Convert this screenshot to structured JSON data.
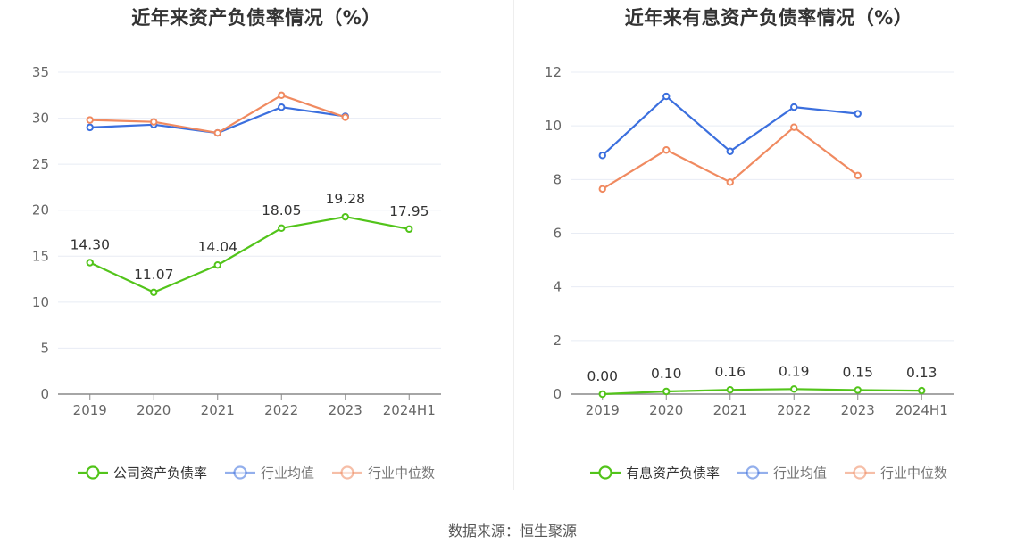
{
  "footer": {
    "source": "数据来源：恒生聚源"
  },
  "colors": {
    "company": "#52c41a",
    "industry_avg": "#3b6fde",
    "industry_median": "#f08a60",
    "grid": "#e8ecf4",
    "axis": "#888888",
    "tick_text": "#666666"
  },
  "chart_data": [
    {
      "type": "line",
      "title": "近年来资产负债率情况（%）",
      "categories": [
        "2019",
        "2020",
        "2021",
        "2022",
        "2023",
        "2024H1"
      ],
      "ylim": [
        0,
        35
      ],
      "yticks": [
        0,
        5,
        10,
        15,
        20,
        25,
        30,
        35
      ],
      "grid": true,
      "legend_position": "bottom",
      "series": [
        {
          "name": "公司资产负债率",
          "color": "#52c41a",
          "values": [
            14.3,
            11.07,
            14.04,
            18.05,
            19.28,
            17.95
          ],
          "labels": [
            "14.30",
            "11.07",
            "14.04",
            "18.05",
            "19.28",
            "17.95"
          ]
        },
        {
          "name": "行业均值",
          "color": "#3b6fde",
          "values": [
            29.0,
            29.3,
            28.4,
            31.2,
            30.2,
            null
          ]
        },
        {
          "name": "行业中位数",
          "color": "#f08a60",
          "values": [
            29.8,
            29.6,
            28.4,
            32.5,
            30.1,
            null
          ]
        }
      ]
    },
    {
      "type": "line",
      "title": "近年来有息资产负债率情况（%）",
      "categories": [
        "2019",
        "2020",
        "2021",
        "2022",
        "2023",
        "2024H1"
      ],
      "ylim": [
        0,
        12
      ],
      "yticks": [
        0,
        2,
        4,
        6,
        8,
        10,
        12
      ],
      "grid": true,
      "legend_position": "bottom",
      "series": [
        {
          "name": "有息资产负债率",
          "color": "#52c41a",
          "values": [
            0.0,
            0.1,
            0.16,
            0.19,
            0.15,
            0.13
          ],
          "labels": [
            "0.00",
            "0.10",
            "0.16",
            "0.19",
            "0.15",
            "0.13"
          ]
        },
        {
          "name": "行业均值",
          "color": "#3b6fde",
          "values": [
            8.9,
            11.1,
            9.05,
            10.7,
            10.45,
            null
          ]
        },
        {
          "name": "行业中位数",
          "color": "#f08a60",
          "values": [
            7.65,
            9.1,
            7.9,
            9.95,
            8.15,
            null
          ]
        }
      ]
    }
  ]
}
